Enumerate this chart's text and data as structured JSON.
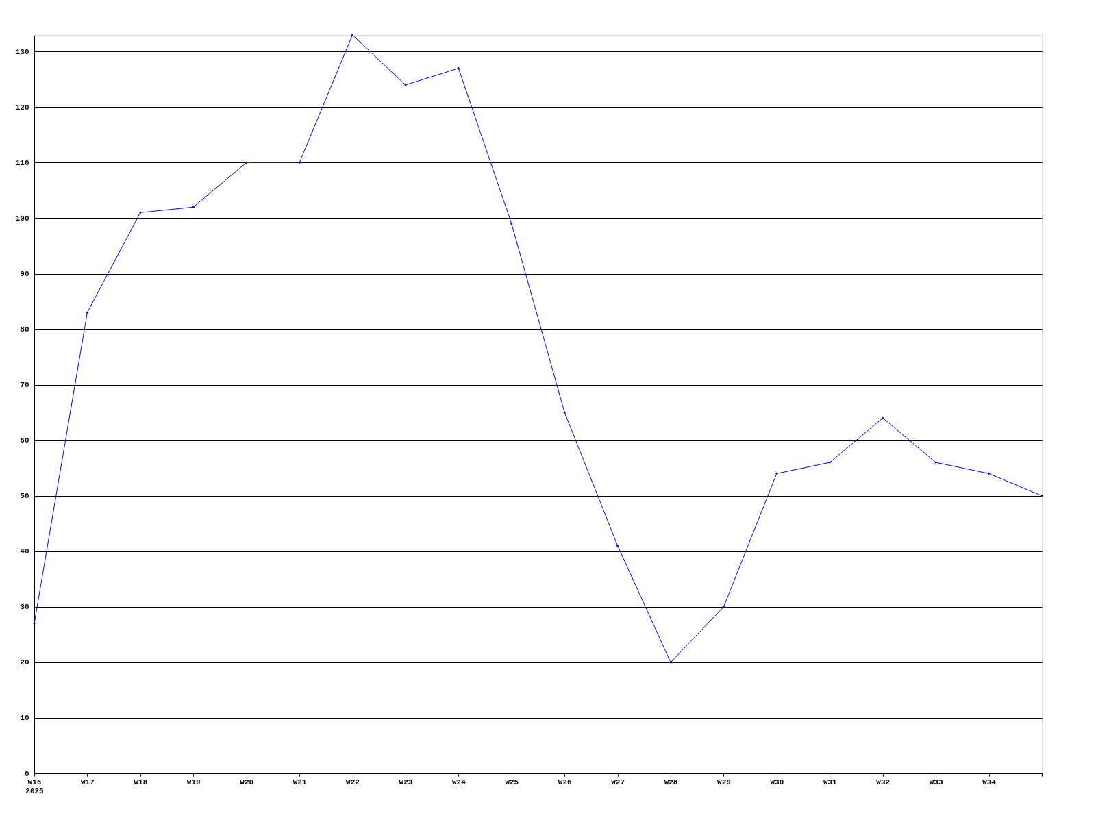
{
  "chart_data": {
    "type": "line",
    "categories": [
      "W16\n2025",
      "W17",
      "W18",
      "W19",
      "W20",
      "W21",
      "W22",
      "W23",
      "W24",
      "W25",
      "W26",
      "W27",
      "W28",
      "W29",
      "W30",
      "W31",
      "W32",
      "W33",
      "W34",
      null
    ],
    "series": [
      {
        "color": "#0000ff",
        "values": [
          27,
          83,
          101,
          102,
          110,
          110,
          133,
          124,
          127,
          99,
          65,
          41,
          20,
          30,
          54,
          56,
          64,
          56,
          54,
          50
        ]
      }
    ],
    "ylim": [
      0,
      133
    ],
    "yticks": [
      0,
      10,
      20,
      30,
      40,
      50,
      60,
      70,
      80,
      90,
      100,
      110,
      120,
      130
    ],
    "grid": "y",
    "marker": "diamond",
    "line_style": "solid"
  }
}
